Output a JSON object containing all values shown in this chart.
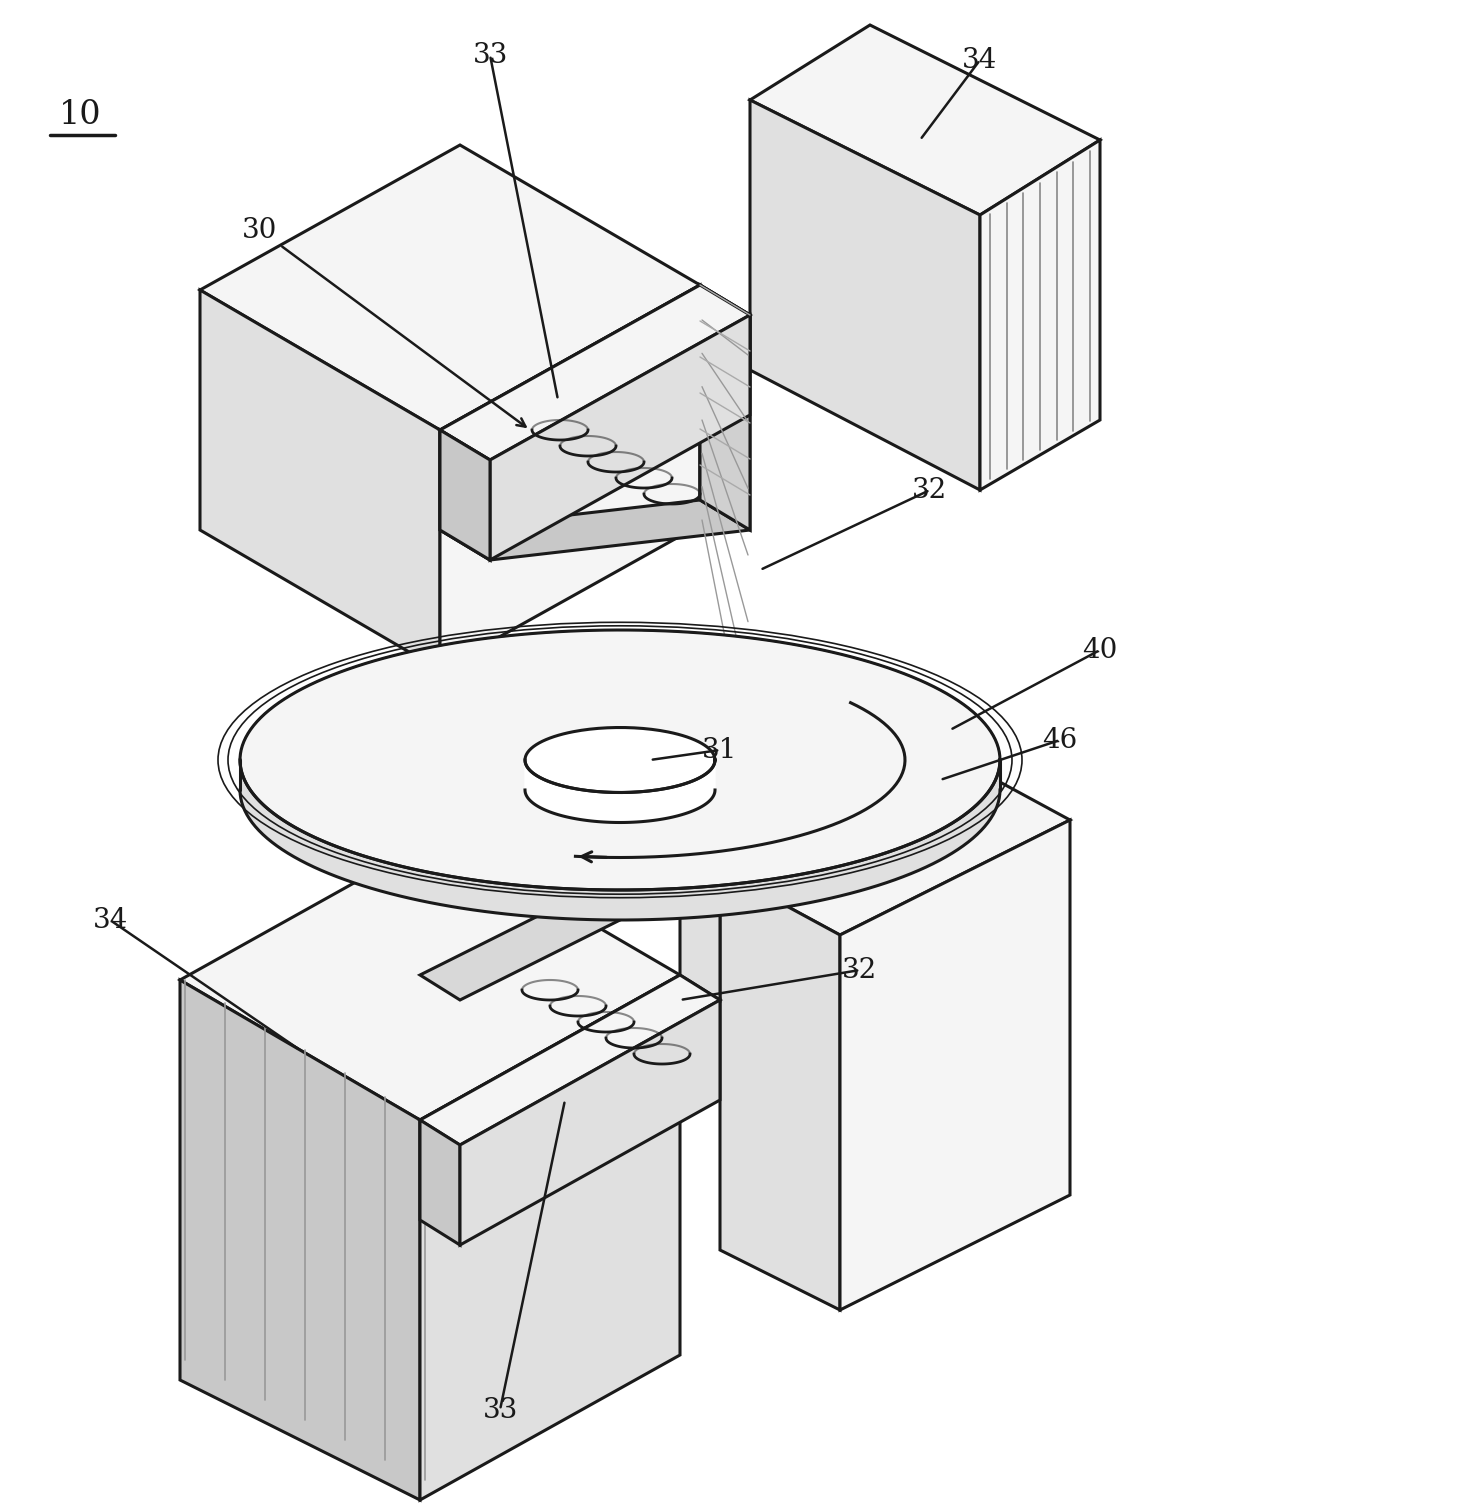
{
  "background_color": "#ffffff",
  "line_color": "#1a1a1a",
  "line_width": 2.2,
  "label_fontsize": 20,
  "title_fontsize": 24,
  "face_light": "#f5f5f5",
  "face_mid": "#e0e0e0",
  "face_dark": "#c8c8c8",
  "face_white": "#ffffff"
}
